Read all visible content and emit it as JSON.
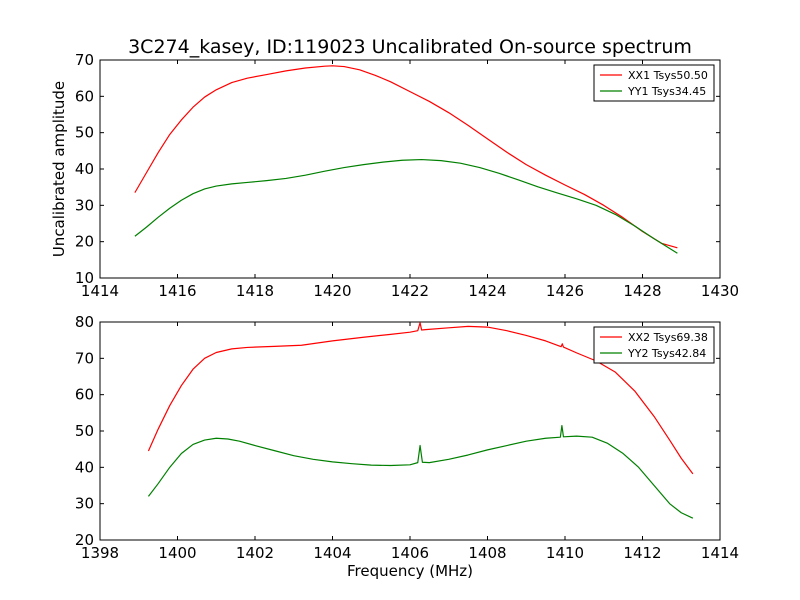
{
  "figure": {
    "title": "3C274_kasey, ID:119023 Uncalibrated On-source spectrum"
  },
  "chart_data": [
    {
      "type": "line",
      "title": "3C274_kasey, ID:119023 Uncalibrated On-source spectrum",
      "xlabel": "",
      "ylabel": "Uncalibrated amplitude",
      "xlim": [
        1414,
        1430
      ],
      "ylim": [
        10,
        70
      ],
      "xticks": [
        "1414",
        "1416",
        "1418",
        "1420",
        "1422",
        "1424",
        "1426",
        "1428",
        "1430"
      ],
      "yticks": [
        "10",
        "20",
        "30",
        "40",
        "50",
        "60",
        "70"
      ],
      "legend_position": "top-right",
      "grid": false,
      "series": [
        {
          "name": "XX1 Tsys50.50",
          "color": "#ff0000",
          "x": [
            1414.9,
            1415.2,
            1415.5,
            1415.8,
            1416.1,
            1416.4,
            1416.7,
            1417.0,
            1417.4,
            1417.8,
            1418.3,
            1418.8,
            1419.3,
            1419.8,
            1420.0,
            1420.3,
            1420.7,
            1421.1,
            1421.5,
            1422.0,
            1422.5,
            1423.0,
            1423.5,
            1424.0,
            1424.5,
            1425.0,
            1425.5,
            1426.0,
            1426.5,
            1427.0,
            1427.5,
            1428.0,
            1428.5,
            1428.9
          ],
          "y": [
            33.5,
            39,
            44.5,
            49.5,
            53.5,
            57,
            59.8,
            61.8,
            63.8,
            65,
            66,
            67,
            67.8,
            68.3,
            68.4,
            68.2,
            67.3,
            65.8,
            64,
            61.3,
            58.6,
            55.5,
            52,
            48.3,
            44.6,
            41.2,
            38.3,
            35.6,
            33,
            30,
            26.6,
            22.8,
            19.5,
            18.3
          ]
        },
        {
          "name": "YY1 Tsys34.45",
          "color": "#008000",
          "x": [
            1414.9,
            1415.2,
            1415.5,
            1415.8,
            1416.1,
            1416.4,
            1416.7,
            1417.0,
            1417.4,
            1417.8,
            1418.3,
            1418.8,
            1419.3,
            1419.8,
            1420.3,
            1420.8,
            1421.3,
            1421.8,
            1422.3,
            1422.8,
            1423.3,
            1423.8,
            1424.3,
            1424.8,
            1425.3,
            1425.8,
            1426.3,
            1426.8,
            1427.3,
            1427.8,
            1428.3,
            1428.9
          ],
          "y": [
            21.5,
            24,
            26.7,
            29.2,
            31.4,
            33.2,
            34.5,
            35.3,
            35.9,
            36.3,
            36.8,
            37.4,
            38.3,
            39.4,
            40.4,
            41.2,
            41.9,
            42.4,
            42.6,
            42.3,
            41.6,
            40.4,
            38.8,
            37,
            35.1,
            33.4,
            31.8,
            30,
            27.5,
            24.3,
            20.8,
            16.8
          ]
        }
      ]
    },
    {
      "type": "line",
      "title": "",
      "xlabel": "Frequency (MHz)",
      "ylabel": "",
      "xlim": [
        1398,
        1414
      ],
      "ylim": [
        20,
        80
      ],
      "xticks": [
        "1398",
        "1400",
        "1402",
        "1404",
        "1406",
        "1408",
        "1410",
        "1412",
        "1414"
      ],
      "yticks": [
        "20",
        "30",
        "40",
        "50",
        "60",
        "70",
        "80"
      ],
      "legend_position": "top-right",
      "grid": false,
      "series": [
        {
          "name": "XX2 Tsys69.38",
          "color": "#ff0000",
          "x": [
            1399.25,
            1399.5,
            1399.8,
            1400.1,
            1400.4,
            1400.7,
            1401.0,
            1401.4,
            1401.8,
            1402.5,
            1403.2,
            1404.0,
            1404.8,
            1405.5,
            1406.0,
            1406.2,
            1406.26,
            1406.3,
            1406.4,
            1407.0,
            1407.5,
            1408.0,
            1408.5,
            1409.0,
            1409.5,
            1409.9,
            1409.93,
            1409.96,
            1410.3,
            1410.8,
            1411.3,
            1411.8,
            1412.3,
            1412.7,
            1413.0,
            1413.3
          ],
          "y": [
            44.5,
            50.5,
            57,
            62.5,
            67,
            70,
            71.6,
            72.6,
            73,
            73.3,
            73.6,
            74.8,
            75.8,
            76.6,
            77.2,
            77.6,
            79.8,
            77.8,
            77.9,
            78.4,
            78.8,
            78.6,
            77.6,
            76.3,
            74.8,
            73.2,
            74,
            73.1,
            71.5,
            69.3,
            66.2,
            61,
            54,
            47.5,
            42.5,
            38.2
          ]
        },
        {
          "name": "YY2 Tsys42.84",
          "color": "#008000",
          "x": [
            1399.25,
            1399.5,
            1399.8,
            1400.1,
            1400.4,
            1400.7,
            1401.0,
            1401.3,
            1401.6,
            1402.0,
            1402.5,
            1403.0,
            1403.5,
            1404.0,
            1404.5,
            1405.0,
            1405.5,
            1406.0,
            1406.2,
            1406.26,
            1406.32,
            1406.5,
            1407.0,
            1407.5,
            1408.0,
            1408.5,
            1409.0,
            1409.5,
            1409.88,
            1409.92,
            1409.96,
            1410.3,
            1410.7,
            1411.1,
            1411.5,
            1411.9,
            1412.3,
            1412.7,
            1413.0,
            1413.3
          ],
          "y": [
            32,
            35.5,
            40,
            43.8,
            46.3,
            47.5,
            48,
            47.8,
            47.2,
            46,
            44.6,
            43.2,
            42.2,
            41.5,
            41,
            40.6,
            40.5,
            40.7,
            41.3,
            46,
            41.4,
            41.3,
            42.2,
            43.4,
            44.8,
            46,
            47.2,
            48,
            48.3,
            51.5,
            48.4,
            48.6,
            48.3,
            46.6,
            43.8,
            40,
            35,
            30,
            27.5,
            26
          ]
        }
      ]
    }
  ]
}
